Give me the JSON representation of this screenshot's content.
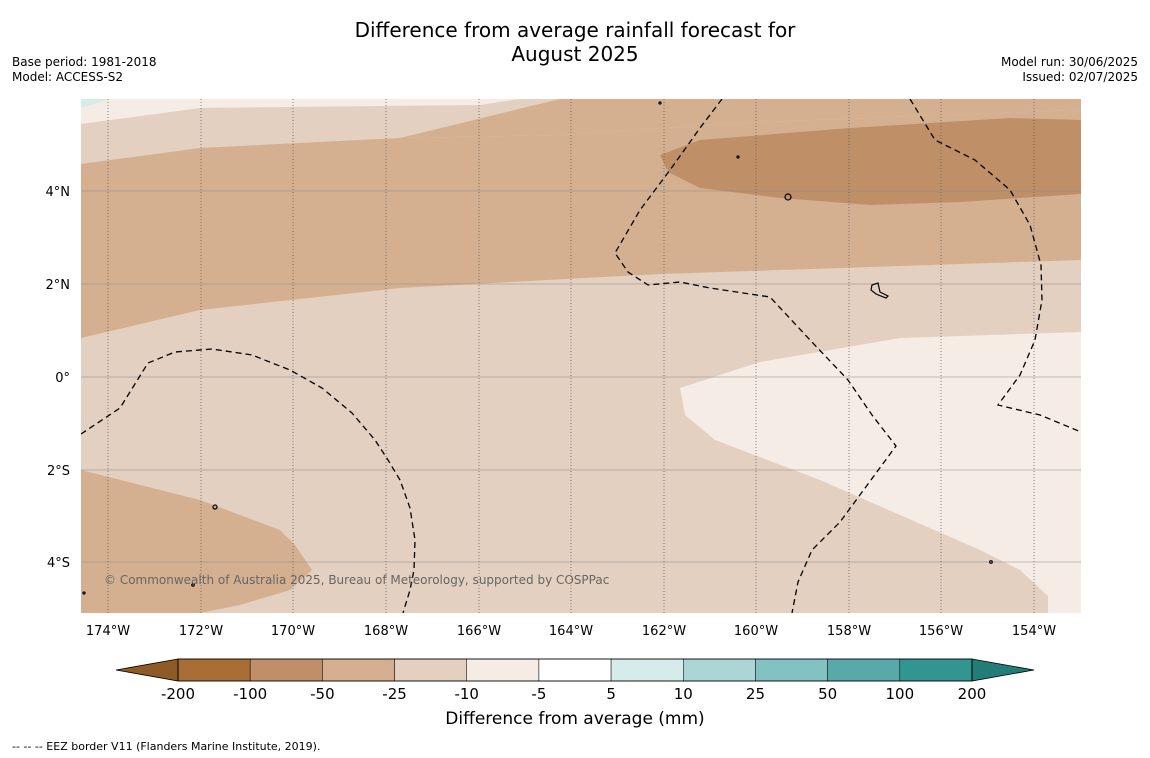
{
  "title_line1": "Difference from average rainfall forecast for",
  "title_line2": "August 2025",
  "meta_left": {
    "base_period": "Base period: 1981-2018",
    "model": "Model: ACCESS-S2"
  },
  "meta_right": {
    "model_run": "Model run: 30/06/2025",
    "issued": "Issued: 02/07/2025"
  },
  "map": {
    "lon_labels": [
      "174°W",
      "172°W",
      "170°W",
      "168°W",
      "166°W",
      "164°W",
      "162°W",
      "160°W",
      "158°W",
      "156°W",
      "154°W"
    ],
    "lat_labels": [
      "4°N",
      "2°N",
      "0°",
      "2°S",
      "4°S"
    ],
    "copyright": "© Commonwealth of Australia 2025, Bureau of Meteorology, supported by COSPPac"
  },
  "colorbar": {
    "ticks": [
      "-200",
      "-100",
      "-50",
      "-25",
      "-10",
      "-5",
      "5",
      "10",
      "25",
      "50",
      "100",
      "200"
    ],
    "colors": [
      "#a86e36",
      "#bf9068",
      "#d4b090",
      "#e3d0c0",
      "#f5ece6",
      "#ffffff",
      "#d6eceb",
      "#acd6d6",
      "#82c2c1",
      "#58aaa9",
      "#32958f"
    ],
    "extend_low_color": "#8e5a26",
    "extend_high_color": "#227c78",
    "label": "Difference from average (mm)"
  },
  "footnote": "--  --  -- EEZ border V11 (Flanders Marine Institute, 2019)."
}
